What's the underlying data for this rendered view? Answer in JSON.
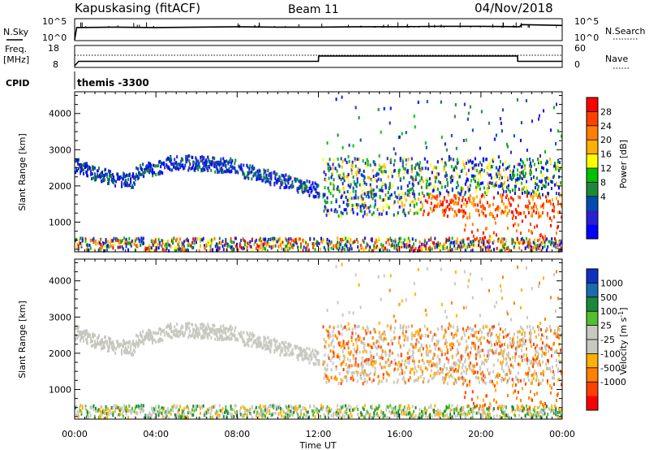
{
  "header": {
    "station": "Kapuskasing (fitACF)",
    "beam": "Beam 11",
    "date": "04/Nov/2018"
  },
  "strip": {
    "nsky_label": "N.Sky",
    "nsky_ticks": [
      "10^5",
      "10^0"
    ],
    "nsearch_label": "N.Search",
    "nsearch_ticks": [
      "10^5",
      "10^0"
    ],
    "freq_label": "Freq.",
    "freq_unit": "[MHz]",
    "freq_ticks": [
      "18",
      "8"
    ],
    "nave_label": "Nave",
    "nave_ticks": [
      "60",
      "0"
    ],
    "cpid_label": "CPID",
    "cpid_value": "themis -3300"
  },
  "power": {
    "ylabel": "Slant Range [km]",
    "yticks": [
      "4000",
      "3000",
      "2000",
      "1000"
    ],
    "cbar_label": "Power [dB]",
    "cbar_ticks": [
      "28",
      "24",
      "20",
      "16",
      "12",
      "8",
      "4"
    ],
    "cbar_colors": [
      "#ff0000",
      "#ff4000",
      "#ff8000",
      "#ffb000",
      "#ffff00",
      "#00c000",
      "#1a8a3a",
      "#004cb0",
      "#2a20d0",
      "#0000ff"
    ]
  },
  "velocity": {
    "ylabel": "Slant Range [km]",
    "yticks": [
      "4000",
      "3000",
      "2000",
      "1000"
    ],
    "cbar_label": "Velocity [m s",
    "cbar_label_sup": "-1",
    "cbar_label_end": "]",
    "cbar_ticks": [
      "1000",
      "500",
      "100",
      "25",
      "-25",
      "-100",
      "-500",
      "-1000"
    ],
    "cbar_colors": [
      "#1030c0",
      "#1a6ab0",
      "#1a8a3a",
      "#50c030",
      "#c8c8c0",
      "#c8c8c0",
      "#ffb000",
      "#ff8000",
      "#ff4000",
      "#ff0000"
    ]
  },
  "xaxis": {
    "label": "Time UT",
    "ticks": [
      "00:00",
      "04:00",
      "08:00",
      "12:00",
      "16:00",
      "20:00",
      "00:00"
    ]
  },
  "chart_data": [
    {
      "type": "line",
      "title": "N.Sky / N.Search",
      "x_hours": [
        0,
        0.1,
        2,
        4,
        6,
        8,
        10,
        12,
        14,
        16,
        18,
        20,
        21.9,
        22,
        24
      ],
      "nsky_log": [
        0.0,
        2.9,
        3.0,
        2.9,
        3.0,
        3.1,
        3.0,
        3.0,
        3.1,
        3.1,
        3.2,
        3.2,
        3.1,
        3.6,
        3.4
      ]
    },
    {
      "type": "line",
      "title": "Freq / Nave",
      "x_hours": [
        0,
        0.2,
        12,
        12.01,
        21.8,
        21.81,
        24
      ],
      "freq_mhz": [
        8,
        10.5,
        10.5,
        13.5,
        13.5,
        10.5,
        10.5
      ],
      "nave": [
        31,
        31,
        31,
        31,
        31,
        31,
        31
      ]
    },
    {
      "type": "heatmap",
      "title": "Power [dB]",
      "xlim": [
        0,
        24
      ],
      "ylim": [
        180,
        4600
      ],
      "xlabel": "Time UT",
      "ylabel": "Slant Range [km]"
    },
    {
      "type": "heatmap",
      "title": "Velocity [m s-1]",
      "xlim": [
        0,
        24
      ],
      "ylim": [
        180,
        4600
      ],
      "xlabel": "Time UT",
      "ylabel": "Slant Range [km]"
    }
  ]
}
